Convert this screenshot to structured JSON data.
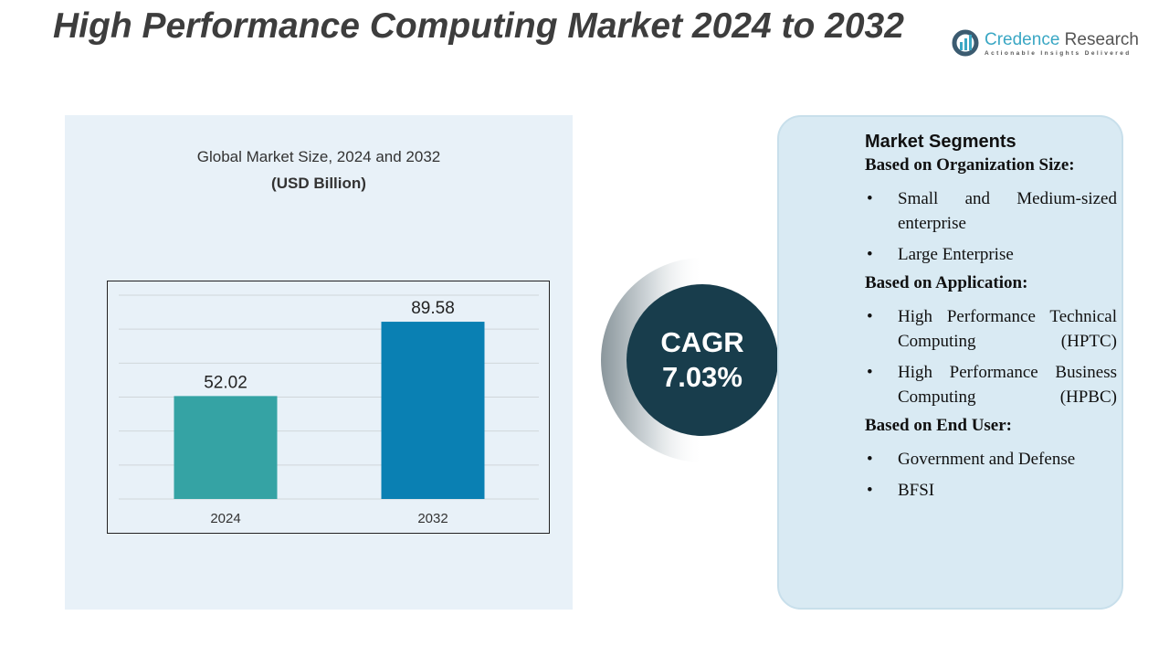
{
  "title": "High Performance Computing Market 2024 to 2032",
  "logo": {
    "name_a": "Credence",
    "name_b": "Research",
    "tagline": "Actionable Insights Delivered"
  },
  "chart_data": {
    "type": "bar",
    "title": "Global Market Size, 2024 and 2032",
    "subtitle": "(USD Billion)",
    "categories": [
      "2024",
      "2032"
    ],
    "values": [
      52.02,
      89.58
    ],
    "labels": [
      "52.02",
      "89.58"
    ],
    "colors": [
      "#35a3a4",
      "#0a80b3"
    ],
    "grid": true,
    "ylim": [
      0,
      103
    ]
  },
  "cagr": {
    "label": "CAGR",
    "value": "7.03%"
  },
  "segments": {
    "heading": "Market Segments",
    "groups": [
      {
        "title": "Based on Organization Size:",
        "items": [
          "Small and Medium-sized enterprise",
          "Large Enterprise"
        ]
      },
      {
        "title": "Based on Application:",
        "items": [
          "High Performance Technical Computing (HPTC)",
          "High Performance Business Computing (HPBC)"
        ]
      },
      {
        "title": "Based on End User:",
        "items": [
          "Government and Defense",
          "BFSI"
        ]
      }
    ]
  }
}
